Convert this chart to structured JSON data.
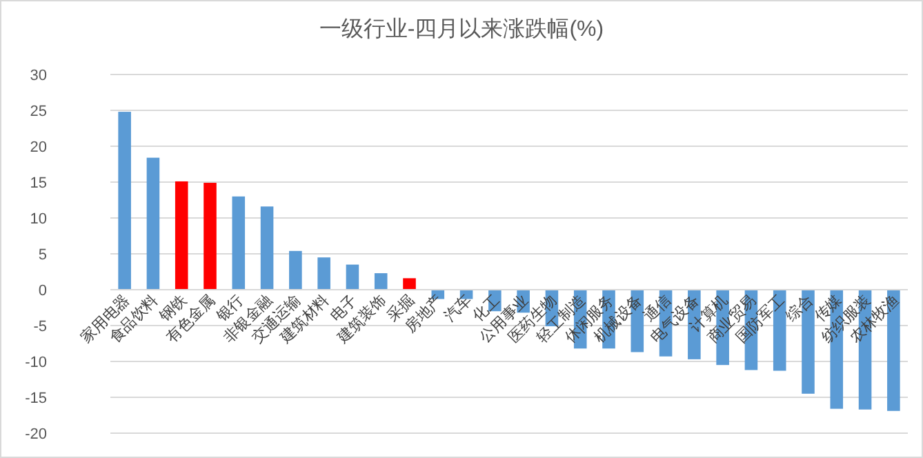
{
  "chart_data": {
    "type": "bar",
    "title": "一级行业-四月以来涨跌幅(%)",
    "categories": [
      "家用电器",
      "食品饮料",
      "钢铁",
      "有色金属",
      "银行",
      "非银金融",
      "交通运输",
      "建筑材料",
      "电子",
      "建筑装饰",
      "采掘",
      "房地产",
      "汽车",
      "化工",
      "公用事业",
      "医药生物",
      "轻工制造",
      "休闲服务",
      "机械设备",
      "通信",
      "电气设备",
      "计算机",
      "商业贸易",
      "国防军工",
      "综合",
      "传媒",
      "纺织服装",
      "农林牧渔"
    ],
    "values": [
      24.8,
      18.4,
      15.1,
      14.9,
      13.0,
      11.6,
      5.4,
      4.5,
      3.5,
      2.3,
      1.6,
      -1.3,
      -1.3,
      -3.0,
      -3.2,
      -5.1,
      -8.2,
      -8.2,
      -8.7,
      -9.3,
      -9.7,
      -10.5,
      -11.2,
      -11.3,
      -14.5,
      -16.6,
      -16.7,
      -16.9
    ],
    "colors": [
      "#5b9bd5",
      "#5b9bd5",
      "#ff0000",
      "#ff0000",
      "#5b9bd5",
      "#5b9bd5",
      "#5b9bd5",
      "#5b9bd5",
      "#5b9bd5",
      "#5b9bd5",
      "#ff0000",
      "#5b9bd5",
      "#5b9bd5",
      "#5b9bd5",
      "#5b9bd5",
      "#5b9bd5",
      "#5b9bd5",
      "#5b9bd5",
      "#5b9bd5",
      "#5b9bd5",
      "#5b9bd5",
      "#5b9bd5",
      "#5b9bd5",
      "#5b9bd5",
      "#5b9bd5",
      "#5b9bd5",
      "#5b9bd5",
      "#5b9bd5"
    ],
    "ylim": [
      -20,
      30
    ],
    "yticks": [
      -20,
      -15,
      -10,
      -5,
      0,
      5,
      10,
      15,
      20,
      25,
      30
    ],
    "grid": "y"
  }
}
